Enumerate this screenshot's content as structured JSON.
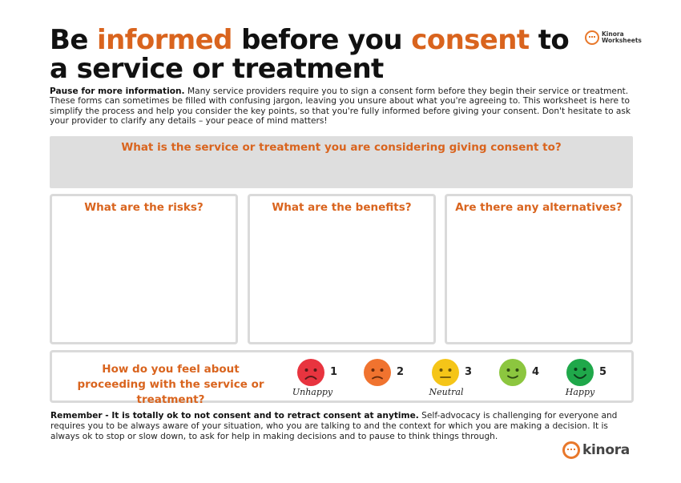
{
  "header": {
    "title_parts": [
      "Be ",
      "informed",
      " before you ",
      "consent",
      " to a service or treatment"
    ],
    "brand_top": [
      "Kinora",
      "Worksheets"
    ]
  },
  "intro": {
    "lead": "Pause for more information.",
    "body": " Many service providers require you to sign a consent form before they begin their service or treatment. These forms can sometimes be filled with confusing jargon, leaving you unsure about what you're agreeing to. This worksheet is here to simplify the process and help you consider the key points, so that you're fully informed before giving your consent. Don't hesitate to ask your provider to clarify any details – your peace of mind matters!"
  },
  "question": "What is the service or treatment you are considering giving consent to?",
  "panels": [
    "What are the risks?",
    "What are the benefits?",
    "Are there any alternatives?"
  ],
  "feeling": {
    "question": "How do you feel about proceeding with the service or treatment?",
    "scale": [
      {
        "value": "1",
        "color": "#e8343f",
        "mood": "sad",
        "label": "Unhappy"
      },
      {
        "value": "2",
        "color": "#f0732f",
        "mood": "frown",
        "label": ""
      },
      {
        "value": "3",
        "color": "#f5c518",
        "mood": "neutral",
        "label": "Neutral"
      },
      {
        "value": "4",
        "color": "#8cc63f",
        "mood": "smile",
        "label": ""
      },
      {
        "value": "5",
        "color": "#1fa84a",
        "mood": "happy",
        "label": "Happy"
      }
    ]
  },
  "remember": {
    "lead": "Remember - It is totally ok to not consent and to retract consent at anytime.",
    "body": " Self-advocacy is challenging for everyone and requires you to be always aware of your situation, who you are talking to and the context for which you are making a decision. It is always ok to stop or slow down, to ask for help in making decisions and to pause to think things through."
  },
  "brand_bottom": "kinora",
  "colors": {
    "accent": "#d9641e",
    "panel_border": "#dadada",
    "question_bg": "#dedede"
  }
}
